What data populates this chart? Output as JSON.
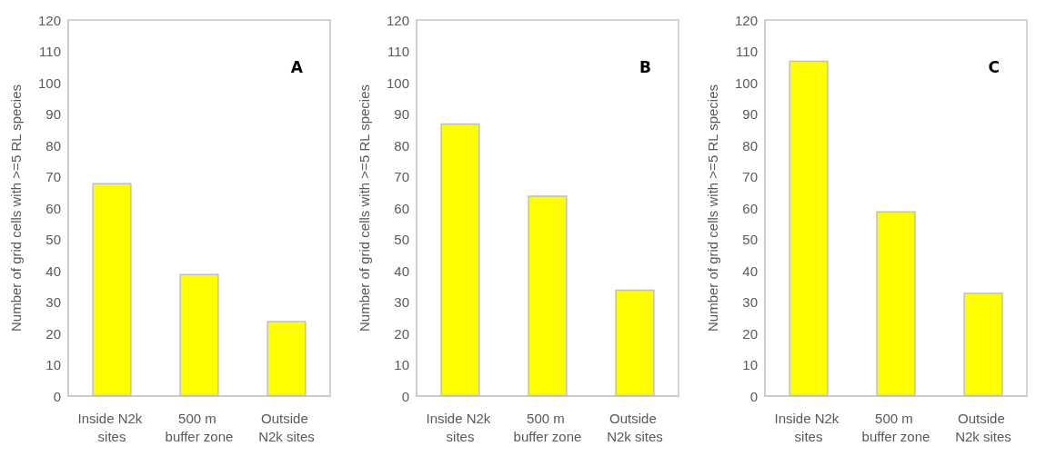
{
  "chart_data": [
    {
      "type": "bar",
      "ylabel": "Number of grid cells with >=5 RL species",
      "categories": [
        "Inside N2k sites",
        "500 m buffer zone",
        "Outside N2k sites"
      ],
      "values": [
        68,
        39,
        24
      ],
      "color": "#ffff00",
      "ylim": [
        0,
        120
      ],
      "yticks": [
        0,
        10,
        20,
        30,
        40,
        50,
        60,
        70,
        80,
        90,
        100,
        110,
        120
      ],
      "annotations": [
        "A"
      ]
    },
    {
      "type": "bar",
      "ylabel": "Number of grid cells with >=5 RL species",
      "categories": [
        "Inside N2k sites",
        "500 m buffer zone",
        "Outside N2k sites"
      ],
      "values": [
        87,
        64,
        34
      ],
      "color": "#ffff00",
      "ylim": [
        0,
        120
      ],
      "yticks": [
        0,
        10,
        20,
        30,
        40,
        50,
        60,
        70,
        80,
        90,
        100,
        110,
        120
      ],
      "annotations": [
        "B"
      ]
    },
    {
      "type": "bar",
      "ylabel": "Number of grid cells with >=5 RL species",
      "categories": [
        "Inside N2k sites",
        "500 m buffer zone",
        "Outside N2k sites"
      ],
      "values": [
        107,
        59,
        33
      ],
      "color": "#ffff00",
      "ylim": [
        0,
        120
      ],
      "yticks": [
        0,
        10,
        20,
        30,
        40,
        50,
        60,
        70,
        80,
        90,
        100,
        110,
        120
      ],
      "annotations": [
        "C"
      ]
    }
  ]
}
